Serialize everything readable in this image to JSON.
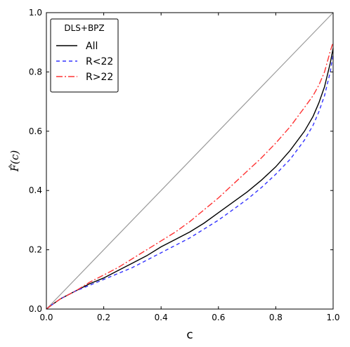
{
  "chart_data": {
    "type": "line",
    "title": "",
    "xlabel": "c",
    "ylabel": "F̂(c)",
    "xlim": [
      0.0,
      1.0
    ],
    "ylim": [
      0.0,
      1.0
    ],
    "xticks": [
      0.0,
      0.2,
      0.4,
      0.6,
      0.8,
      1.0
    ],
    "yticks": [
      0.0,
      0.2,
      0.4,
      0.6,
      0.8,
      1.0
    ],
    "xtick_labels": [
      "0.0",
      "0.2",
      "0.4",
      "0.6",
      "0.8",
      "1.0"
    ],
    "ytick_labels": [
      "0.0",
      "0.2",
      "0.4",
      "0.6",
      "0.8",
      "1.0"
    ],
    "grid": false,
    "legend": {
      "title": "DLS+BPZ",
      "placement": "top-left"
    },
    "series": [
      {
        "key": "diagonal",
        "color": "#999999",
        "style": "solid",
        "x": [
          0.0,
          1.0
        ],
        "y": [
          0.0,
          1.0
        ]
      },
      {
        "name": "All",
        "color": "#000000",
        "style": "solid",
        "x": [
          0.0,
          0.02,
          0.05,
          0.1,
          0.15,
          0.2,
          0.25,
          0.3,
          0.35,
          0.4,
          0.45,
          0.5,
          0.55,
          0.6,
          0.65,
          0.7,
          0.75,
          0.8,
          0.85,
          0.9,
          0.93,
          0.95,
          0.97,
          0.98,
          0.99,
          1.0
        ],
        "y": [
          0.0,
          0.015,
          0.035,
          0.06,
          0.085,
          0.105,
          0.13,
          0.155,
          0.18,
          0.21,
          0.235,
          0.26,
          0.29,
          0.325,
          0.36,
          0.395,
          0.435,
          0.48,
          0.535,
          0.6,
          0.65,
          0.695,
          0.75,
          0.79,
          0.83,
          0.88
        ]
      },
      {
        "name": "R<22",
        "color": "#3333ff",
        "style": "dashed",
        "x": [
          0.0,
          0.02,
          0.05,
          0.1,
          0.15,
          0.2,
          0.25,
          0.3,
          0.35,
          0.4,
          0.45,
          0.5,
          0.55,
          0.6,
          0.65,
          0.7,
          0.75,
          0.8,
          0.85,
          0.9,
          0.93,
          0.95,
          0.97,
          0.98,
          0.99,
          1.0
        ],
        "y": [
          0.0,
          0.015,
          0.035,
          0.06,
          0.08,
          0.1,
          0.12,
          0.14,
          0.165,
          0.19,
          0.215,
          0.24,
          0.27,
          0.3,
          0.335,
          0.37,
          0.41,
          0.455,
          0.505,
          0.57,
          0.62,
          0.665,
          0.72,
          0.76,
          0.8,
          0.86
        ]
      },
      {
        "name": "R>22",
        "color": "#ff3333",
        "style": "dashdot",
        "x": [
          0.0,
          0.02,
          0.05,
          0.1,
          0.15,
          0.2,
          0.25,
          0.3,
          0.35,
          0.4,
          0.45,
          0.5,
          0.55,
          0.6,
          0.65,
          0.7,
          0.75,
          0.8,
          0.85,
          0.9,
          0.93,
          0.95,
          0.97,
          0.98,
          0.99,
          1.0
        ],
        "y": [
          0.0,
          0.015,
          0.035,
          0.06,
          0.09,
          0.115,
          0.14,
          0.17,
          0.2,
          0.23,
          0.26,
          0.295,
          0.335,
          0.375,
          0.42,
          0.465,
          0.51,
          0.56,
          0.615,
          0.68,
          0.72,
          0.755,
          0.8,
          0.835,
          0.87,
          0.9
        ]
      }
    ]
  }
}
